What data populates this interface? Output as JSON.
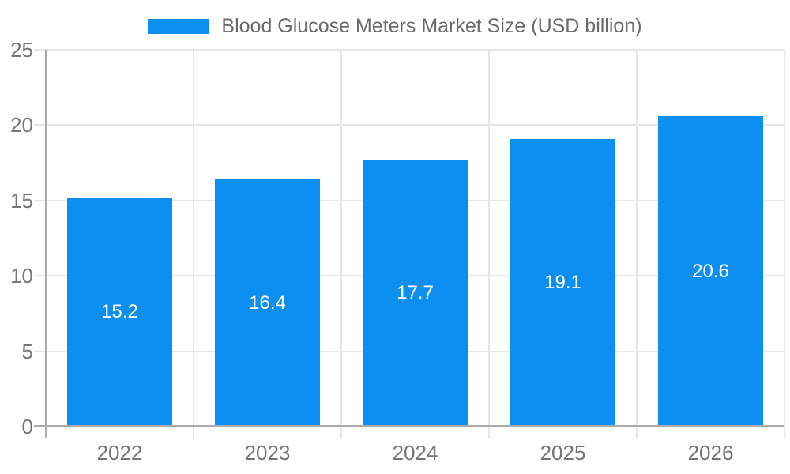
{
  "chart_data": {
    "type": "bar",
    "title": "Blood Glucose Meters Market Size (USD billion)",
    "legend_position": "top",
    "categories": [
      "2022",
      "2023",
      "2024",
      "2025",
      "2026"
    ],
    "values": [
      15.2,
      16.4,
      17.7,
      19.1,
      20.6
    ],
    "value_labels": [
      "15.2",
      "16.4",
      "17.7",
      "19.1",
      "20.6"
    ],
    "xlabel": "",
    "ylabel": "",
    "ylim": [
      0,
      25
    ],
    "yticks": [
      0,
      5,
      10,
      15,
      20,
      25
    ],
    "ytick_labels": [
      "0",
      "5",
      "10",
      "15",
      "20",
      "25"
    ],
    "grid": true,
    "colors": {
      "bar": "#0d8ff2",
      "value_label": "#ffffff",
      "axis_label": "#757575",
      "title": "#6b6b6b",
      "gridline": "#e6e6e6",
      "axis_line": "#ababab",
      "background": "#ffffff"
    }
  }
}
